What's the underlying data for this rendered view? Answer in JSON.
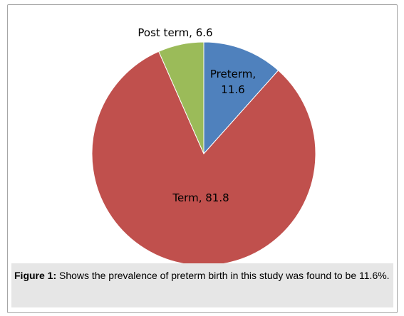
{
  "chart_data": {
    "type": "pie",
    "slices": [
      {
        "name": "Preterm",
        "value": 11.6,
        "color": "#4f81bd",
        "label_line1": "Preterm,",
        "label_line2": "11.6"
      },
      {
        "name": "Term",
        "value": 81.8,
        "color": "#c0504d",
        "label_line1": "Term, 81.8",
        "label_line2": ""
      },
      {
        "name": "Post term",
        "value": 6.6,
        "color": "#9bbb59",
        "label_line1": "Post term, 6.6",
        "label_line2": ""
      }
    ]
  },
  "caption": {
    "prefix": "Figure 1:",
    "text": " Shows the prevalence of preterm birth in this study was found to be 11.6%."
  }
}
